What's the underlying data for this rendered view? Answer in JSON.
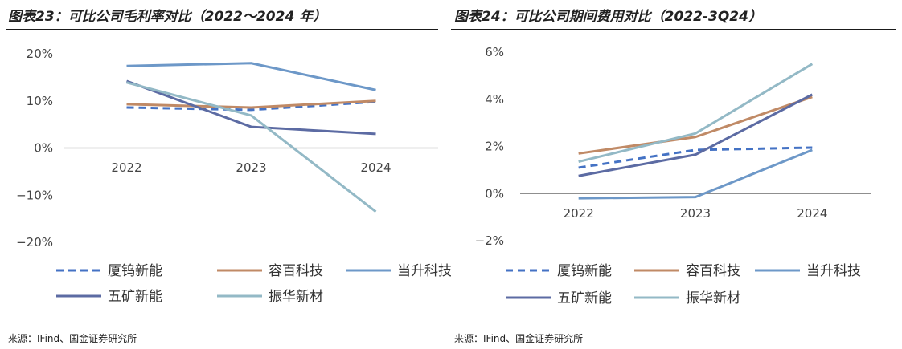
{
  "chart_data": [
    {
      "type": "line",
      "title": "图表23：可比公司毛利率对比（2022～2024 年）",
      "categories": [
        "2022",
        "2023",
        "2024"
      ],
      "ylim": [
        -20,
        20
      ],
      "yticks": [
        -20,
        -10,
        0,
        10,
        20
      ],
      "ytick_labels": [
        "−20%",
        "−10%",
        "0%",
        "10%",
        "20%"
      ],
      "grid": false,
      "legend_position": "bottom",
      "series": [
        {
          "name": "厦钨新能",
          "values": [
            8.6,
            8.1,
            9.8
          ],
          "color": "#4472C4",
          "dash": true
        },
        {
          "name": "容百科技",
          "values": [
            9.3,
            8.6,
            10.0
          ],
          "color": "#C08A66",
          "dash": false
        },
        {
          "name": "当升科技",
          "values": [
            17.4,
            18.0,
            12.3
          ],
          "color": "#6D98C8",
          "dash": false
        },
        {
          "name": "五矿新能",
          "values": [
            14.2,
            4.5,
            3.0
          ],
          "color": "#5C6BA3",
          "dash": false
        },
        {
          "name": "振华新材",
          "values": [
            13.9,
            6.9,
            -13.5
          ],
          "color": "#93B9C6",
          "dash": false
        }
      ],
      "source": "来源：IFind、国金证券研究所"
    },
    {
      "type": "line",
      "title": "图表24：可比公司期间费用对比（2022-3Q24）",
      "categories": [
        "2022",
        "2023",
        "2024"
      ],
      "ylim": [
        -2,
        6
      ],
      "yticks": [
        -2,
        0,
        2,
        4,
        6
      ],
      "ytick_labels": [
        "−2%",
        "0%",
        "2%",
        "4%",
        "6%"
      ],
      "grid": false,
      "legend_position": "bottom",
      "series": [
        {
          "name": "厦钨新能",
          "values": [
            1.1,
            1.85,
            1.95
          ],
          "color": "#4472C4",
          "dash": true
        },
        {
          "name": "容百科技",
          "values": [
            1.7,
            2.4,
            4.1
          ],
          "color": "#C08A66",
          "dash": false
        },
        {
          "name": "当升科技",
          "values": [
            -0.2,
            -0.15,
            1.85
          ],
          "color": "#6D98C8",
          "dash": false
        },
        {
          "name": "五矿新能",
          "values": [
            0.75,
            1.65,
            4.2
          ],
          "color": "#5C6BA3",
          "dash": false
        },
        {
          "name": "振华新材",
          "values": [
            1.35,
            2.55,
            5.5
          ],
          "color": "#93B9C6",
          "dash": false
        }
      ],
      "source": "来源：IFind、国金证券研究所"
    }
  ]
}
